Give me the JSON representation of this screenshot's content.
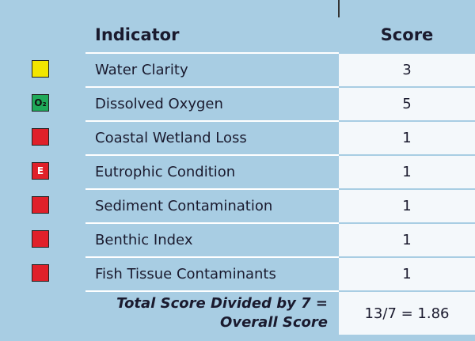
{
  "table": {
    "header": [
      "Indicator",
      "Score"
    ],
    "rows": [
      {
        "indicator": "Water Clarity",
        "score": "3",
        "icon_color": "#f2e600"
      },
      {
        "indicator": "Dissolved Oxygen",
        "score": "5",
        "icon_color": "#1faa5a",
        "icon_text": "O₂"
      },
      {
        "indicator": "Coastal Wetland Loss",
        "score": "1",
        "icon_color": "#e0202a"
      },
      {
        "indicator": "Eutrophic Condition",
        "score": "1",
        "icon_color": "#e0202a",
        "icon_text": "E"
      },
      {
        "indicator": "Sediment Contamination",
        "score": "1",
        "icon_color": "#e0202a"
      },
      {
        "indicator": "Benthic Index",
        "score": "1",
        "icon_color": "#e0202a"
      },
      {
        "indicator": "Fish Tissue Contaminants",
        "score": "1",
        "icon_color": "#e0202a"
      }
    ],
    "total": {
      "label": [
        "Total Score Divided by 7 =",
        "Overall Score"
      ],
      "value": "13/7 = 1.86"
    }
  }
}
